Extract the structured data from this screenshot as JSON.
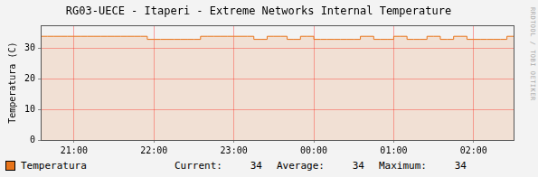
{
  "chart_data": {
    "type": "line",
    "title": "RG03-UECE - Itaperi - Extreme Networks Internal Temperature",
    "y_label": "Temperatura (C)",
    "annotations": [
      "RRDTOOL / TOBI OETIKER"
    ],
    "categories": [
      null,
      null,
      null,
      null,
      null,
      "21:00",
      null,
      null,
      null,
      null,
      null,
      null,
      null,
      null,
      null,
      null,
      null,
      "22:00",
      null,
      null,
      null,
      null,
      null,
      null,
      null,
      null,
      null,
      null,
      null,
      "23:00",
      null,
      null,
      null,
      null,
      null,
      null,
      null,
      null,
      null,
      null,
      null,
      "00:00",
      null,
      null,
      null,
      null,
      null,
      null,
      null,
      null,
      null,
      null,
      null,
      "01:00",
      null,
      null,
      null,
      null,
      null,
      null,
      null,
      null,
      null,
      null,
      null,
      "02:00",
      null,
      null,
      null,
      null,
      null,
      null
    ],
    "series": [
      {
        "name": "Temperatura",
        "color": "#e8741a",
        "values": [
          34,
          34,
          34,
          34,
          34,
          34,
          34,
          34,
          34,
          34,
          34,
          34,
          34,
          34,
          34,
          34,
          33,
          33,
          33,
          33,
          33,
          33,
          33,
          33,
          34,
          34,
          34,
          34,
          34,
          34,
          34,
          34,
          33,
          33,
          34,
          34,
          34,
          33,
          33,
          34,
          34,
          33,
          33,
          33,
          33,
          33,
          33,
          33,
          34,
          34,
          33,
          33,
          33,
          34,
          34,
          33,
          33,
          33,
          34,
          34,
          33,
          33,
          34,
          34,
          33,
          33,
          33,
          33,
          33,
          33,
          34,
          34
        ],
        "stats": [
          {
            "label": "Current:",
            "value": 34
          },
          {
            "label": "Average:",
            "value": 34
          },
          {
            "label": "Maximum:",
            "value": 34
          }
        ]
      }
    ],
    "ylim": [
      0,
      37.5
    ],
    "yticks": [
      0,
      10,
      20,
      30
    ],
    "grid": true,
    "legend": "bottom"
  }
}
